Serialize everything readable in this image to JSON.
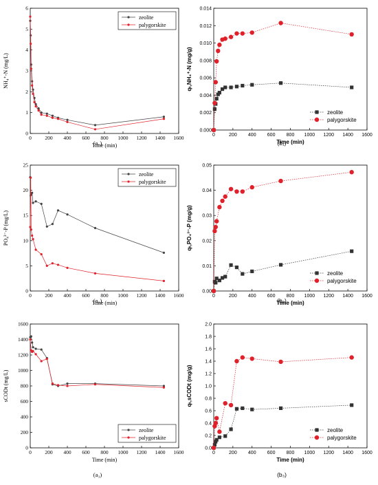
{
  "chart_data": [
    {
      "id": "a1",
      "type": "line",
      "style": "serif",
      "panel_label": "(a₁)",
      "xlabel": "Time (min)",
      "ylabel": "NH₄⁺-N (mg/L)",
      "xlim": [
        0,
        1600
      ],
      "ylim": [
        0,
        6
      ],
      "xticks": [
        0,
        200,
        400,
        600,
        800,
        1000,
        1200,
        1400,
        1600
      ],
      "yticks": [
        0,
        1,
        2,
        3,
        4,
        5,
        6
      ],
      "legend_position": "top-right",
      "series": [
        {
          "name": "zeolite",
          "color": "#444444",
          "marker": "dot",
          "x": [
            0,
            5,
            10,
            20,
            30,
            45,
            60,
            90,
            120,
            180,
            240,
            300,
            400,
            700,
            1440
          ],
          "y": [
            5.4,
            4.7,
            3.3,
            2.5,
            2.1,
            1.7,
            1.4,
            1.2,
            1.0,
            0.95,
            0.85,
            0.75,
            0.65,
            0.4,
            0.8
          ]
        },
        {
          "name": "palygorskite",
          "color": "#e0202a",
          "marker": "dot",
          "x": [
            0,
            5,
            10,
            20,
            30,
            45,
            60,
            90,
            120,
            180,
            240,
            300,
            400,
            700,
            1440
          ],
          "y": [
            5.6,
            4.3,
            3.1,
            2.3,
            1.9,
            1.5,
            1.3,
            1.1,
            0.9,
            0.85,
            0.75,
            0.7,
            0.55,
            0.2,
            0.7
          ]
        }
      ]
    },
    {
      "id": "b1",
      "type": "line",
      "style": "sans",
      "panel_label": "(b₁)",
      "xlabel": "Time (min)",
      "ylabel": "qₜ,NH₄⁺-N (mg/g)",
      "xlim": [
        0,
        1600
      ],
      "ylim": [
        0,
        0.014
      ],
      "xticks": [
        0,
        200,
        400,
        600,
        800,
        1000,
        1200,
        1400,
        1600
      ],
      "yticks": [
        0.0,
        0.002,
        0.004,
        0.006,
        0.008,
        0.01,
        0.012,
        0.014
      ],
      "ytick_labels": [
        "0.000",
        "0.002",
        "0.004",
        "0.006",
        "0.008",
        "0.010",
        "0.012",
        "0.014"
      ],
      "legend_position": "bottom-right",
      "series": [
        {
          "name": "zeolite",
          "color": "#333333",
          "marker": "square",
          "x": [
            0,
            10,
            20,
            30,
            45,
            60,
            90,
            120,
            180,
            240,
            300,
            400,
            700,
            1440
          ],
          "y": [
            0.0,
            0.0024,
            0.003,
            0.0036,
            0.0041,
            0.0043,
            0.0047,
            0.0049,
            0.0049,
            0.005,
            0.0051,
            0.0052,
            0.0054,
            0.0049
          ]
        },
        {
          "name": "palygorskite",
          "color": "#e0202a",
          "marker": "circle",
          "x": [
            0,
            10,
            20,
            30,
            45,
            60,
            90,
            120,
            180,
            240,
            300,
            400,
            700,
            1440
          ],
          "y": [
            0.0,
            0.0031,
            0.0055,
            0.0079,
            0.0091,
            0.0098,
            0.0104,
            0.0105,
            0.0107,
            0.0111,
            0.0111,
            0.0112,
            0.0123,
            0.011
          ]
        }
      ]
    },
    {
      "id": "a2",
      "type": "line",
      "style": "serif",
      "panel_label": "(a₂)",
      "xlabel": "Time (min)",
      "ylabel": "PO₄³⁻-P (mg/L)",
      "xlim": [
        0,
        1600
      ],
      "ylim": [
        0,
        25
      ],
      "xticks": [
        0,
        200,
        400,
        600,
        800,
        1000,
        1200,
        1400,
        1600
      ],
      "yticks": [
        0,
        5,
        10,
        15,
        20,
        25
      ],
      "legend_position": "top-right",
      "series": [
        {
          "name": "zeolite",
          "color": "#444444",
          "marker": "dot",
          "x": [
            0,
            5,
            10,
            20,
            30,
            60,
            120,
            180,
            240,
            300,
            400,
            700,
            1440
          ],
          "y": [
            22.6,
            19.0,
            19.2,
            19.5,
            17.5,
            17.8,
            17.3,
            12.8,
            13.3,
            16.0,
            15.2,
            12.5,
            7.6
          ]
        },
        {
          "name": "palygorskite",
          "color": "#e0202a",
          "marker": "dot",
          "x": [
            0,
            5,
            10,
            20,
            30,
            60,
            120,
            180,
            240,
            300,
            400,
            700,
            1440
          ],
          "y": [
            12.7,
            22.5,
            12.2,
            11.0,
            10.3,
            8.2,
            7.3,
            5.0,
            5.5,
            5.2,
            4.6,
            3.5,
            2.0
          ]
        }
      ]
    },
    {
      "id": "b2",
      "type": "line",
      "style": "sans",
      "panel_label": "(b₂)",
      "xlabel": "Time (min)",
      "ylabel": "qₜ,PO₄³⁻-P (mg/g)",
      "xlim": [
        0,
        1600
      ],
      "ylim": [
        0,
        0.05
      ],
      "xticks": [
        0,
        200,
        400,
        600,
        800,
        1000,
        1200,
        1400,
        1600
      ],
      "yticks": [
        0.0,
        0.01,
        0.02,
        0.03,
        0.04,
        0.05
      ],
      "ytick_labels": [
        "0.00",
        "0.01",
        "0.02",
        "0.03",
        "0.04",
        "0.05"
      ],
      "legend_position": "bottom-right",
      "series": [
        {
          "name": "zeolite",
          "color": "#333333",
          "marker": "square",
          "x": [
            0,
            10,
            20,
            30,
            60,
            90,
            120,
            180,
            240,
            300,
            400,
            700,
            1440
          ],
          "y": [
            0.0,
            0.0037,
            0.0033,
            0.005,
            0.0042,
            0.0052,
            0.0057,
            0.0103,
            0.0094,
            0.0068,
            0.0078,
            0.0104,
            0.0158
          ]
        },
        {
          "name": "palygorskite",
          "color": "#e0202a",
          "marker": "circle",
          "x": [
            0,
            10,
            20,
            30,
            60,
            90,
            120,
            180,
            240,
            300,
            400,
            700,
            1440
          ],
          "y": [
            0.0,
            0.0238,
            0.0254,
            0.0277,
            0.0333,
            0.0358,
            0.0375,
            0.0405,
            0.0395,
            0.0395,
            0.0412,
            0.0437,
            0.0472
          ]
        }
      ]
    },
    {
      "id": "a3",
      "type": "line",
      "style": "serif",
      "panel_label": "(a₃)",
      "xlabel": "Time (min)",
      "ylabel": "sCODt (mg/L)",
      "xlim": [
        0,
        1600
      ],
      "ylim": [
        0,
        1600
      ],
      "xticks": [
        0,
        200,
        400,
        600,
        800,
        1000,
        1200,
        1400,
        1600
      ],
      "yticks": [
        0,
        200,
        400,
        600,
        800,
        1000,
        1200,
        1400,
        1600
      ],
      "legend_position": "bottom-right",
      "series": [
        {
          "name": "zeolite",
          "color": "#444444",
          "marker": "dot",
          "x": [
            0,
            10,
            20,
            30,
            60,
            120,
            180,
            240,
            300,
            400,
            700,
            1440
          ],
          "y": [
            1430,
            1440,
            1360,
            1300,
            1280,
            1270,
            1160,
            820,
            800,
            830,
            830,
            800
          ]
        },
        {
          "name": "palygorskite",
          "color": "#e0202a",
          "marker": "dot",
          "x": [
            0,
            10,
            20,
            30,
            60,
            120,
            180,
            240,
            300,
            400,
            700,
            1440
          ],
          "y": [
            1400,
            1260,
            1240,
            1250,
            1210,
            1120,
            1150,
            830,
            810,
            800,
            820,
            780
          ]
        }
      ]
    },
    {
      "id": "b3",
      "type": "line",
      "style": "sans",
      "panel_label": "(b₃)",
      "xlabel": "Time (min)",
      "ylabel": "qₜ,sCODt (mg/g)",
      "xlim": [
        0,
        1600
      ],
      "ylim": [
        0,
        2.0
      ],
      "xticks": [
        0,
        200,
        400,
        600,
        800,
        1000,
        1200,
        1400,
        1600
      ],
      "yticks": [
        0.0,
        0.2,
        0.4,
        0.6,
        0.8,
        1.0,
        1.2,
        1.4,
        1.6,
        1.8,
        2.0
      ],
      "ytick_labels": [
        "0.0",
        "0.2",
        "0.4",
        "0.6",
        "0.8",
        "1.0",
        "1.2",
        "1.4",
        "1.6",
        "1.8",
        "2.0"
      ],
      "legend_position": "bottom-right",
      "series": [
        {
          "name": "zeolite",
          "color": "#333333",
          "marker": "square",
          "x": [
            0,
            10,
            20,
            30,
            60,
            120,
            180,
            240,
            300,
            400,
            700,
            1440
          ],
          "y": [
            0.0,
            0.05,
            0.1,
            0.13,
            0.17,
            0.19,
            0.3,
            0.63,
            0.64,
            0.62,
            0.64,
            0.69
          ]
        },
        {
          "name": "palygorskite",
          "color": "#e0202a",
          "marker": "circle",
          "x": [
            0,
            10,
            20,
            30,
            60,
            120,
            180,
            240,
            300,
            400,
            700,
            1440
          ],
          "y": [
            0.0,
            0.35,
            0.4,
            0.48,
            0.26,
            0.72,
            0.69,
            1.4,
            1.46,
            1.44,
            1.39,
            1.46
          ]
        }
      ]
    }
  ]
}
